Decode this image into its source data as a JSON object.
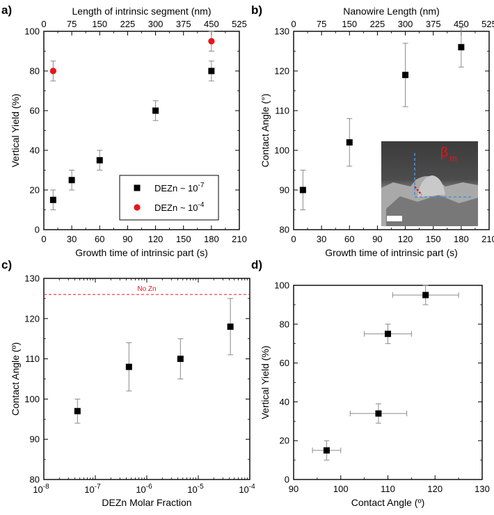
{
  "panel_labels": [
    "a)",
    "b)",
    "c)",
    "d)"
  ],
  "chart_data": [
    {
      "panel": "a)",
      "type": "scatter",
      "xlabel": "Growth time of intrinsic part (s)",
      "ylabel": "Vertical Yield (%)",
      "xlabel_top": "Length of intrinsic segment (nm)",
      "xlim": [
        0,
        210
      ],
      "ylim": [
        0,
        100
      ],
      "xticks": [
        0,
        30,
        60,
        90,
        120,
        150,
        180,
        210
      ],
      "yticks": [
        0,
        20,
        40,
        60,
        80,
        100
      ],
      "top_ticks": [
        "0",
        "75",
        "150",
        "225",
        "300",
        "375",
        "450",
        "525"
      ],
      "legend_position": "bottom-right",
      "series": [
        {
          "name": "DEZn ~ 10",
          "name_sup": "-7",
          "color": "#000000",
          "marker": "square",
          "points": [
            {
              "x": 10,
              "y": 15,
              "err": 5
            },
            {
              "x": 30,
              "y": 25,
              "err": 5
            },
            {
              "x": 60,
              "y": 35,
              "err": 5
            },
            {
              "x": 120,
              "y": 60,
              "err": 5
            },
            {
              "x": 180,
              "y": 80,
              "err": 5
            }
          ]
        },
        {
          "name": "DEZn ~ 10",
          "name_sup": "-4",
          "color": "#e8141c",
          "marker": "circle",
          "points": [
            {
              "x": 10,
              "y": 80,
              "err": 5
            },
            {
              "x": 180,
              "y": 95,
              "err": 5
            }
          ]
        }
      ]
    },
    {
      "panel": "b)",
      "type": "scatter",
      "xlabel": "Growth time of intrinsic part (s)",
      "ylabel": "Contact Angle (°)",
      "xlabel_top": "Nanowire Length (nm)",
      "xlim": [
        0,
        210
      ],
      "ylim": [
        80,
        130
      ],
      "xticks": [
        0,
        30,
        60,
        90,
        120,
        150,
        180,
        210
      ],
      "yticks": [
        80,
        90,
        100,
        110,
        120,
        130
      ],
      "top_ticks": [
        "0",
        "75",
        "150",
        "225",
        "300",
        "375",
        "450",
        "525"
      ],
      "inset_annotation": "β",
      "inset_annotation_sub": "m",
      "series": [
        {
          "color": "#000000",
          "marker": "square",
          "points": [
            {
              "x": 10,
              "y": 90,
              "err": 5
            },
            {
              "x": 60,
              "y": 102,
              "err": 6
            },
            {
              "x": 120,
              "y": 119,
              "err": 8
            },
            {
              "x": 180,
              "y": 126,
              "err": 5
            }
          ]
        }
      ]
    },
    {
      "panel": "c)",
      "type": "scatter",
      "xlabel": "DEZn Molar Fraction",
      "ylabel": "Contact Angle (º)",
      "xscale": "log",
      "xlim": [
        1e-08,
        0.0001
      ],
      "ylim": [
        80,
        130
      ],
      "xticks_exp": [
        -8,
        -7,
        -6,
        -5,
        -4
      ],
      "yticks": [
        80,
        90,
        100,
        110,
        120,
        130
      ],
      "reference_line": {
        "y": 126,
        "label": "No Zn",
        "color": "#e8141c",
        "style": "dashed"
      },
      "series": [
        {
          "color": "#000000",
          "marker": "square",
          "points": [
            {
              "x": 4.5e-08,
              "y": 97,
              "err": 3
            },
            {
              "x": 4.5e-07,
              "y": 108,
              "err": 6
            },
            {
              "x": 4.5e-06,
              "y": 110,
              "err": 5
            },
            {
              "x": 4.2e-05,
              "y": 118,
              "err": 7
            }
          ]
        }
      ]
    },
    {
      "panel": "d)",
      "type": "scatter",
      "xlabel": "Contact Angle (º)",
      "ylabel": "Vertical Yield (%)",
      "xlim": [
        90,
        130
      ],
      "ylim": [
        0,
        100
      ],
      "xticks": [
        90,
        100,
        110,
        120,
        130
      ],
      "yticks": [
        0,
        20,
        40,
        60,
        80,
        100
      ],
      "series": [
        {
          "color": "#000000",
          "marker": "square",
          "points": [
            {
              "x": 97,
              "y": 15,
              "xerr": 3,
              "yerr": 5
            },
            {
              "x": 108,
              "y": 34,
              "xerr": 6,
              "yerr": 5
            },
            {
              "x": 110,
              "y": 75,
              "xerr": 5,
              "yerr": 5
            },
            {
              "x": 118,
              "y": 95,
              "xerr": 7,
              "yerr": 5
            }
          ]
        }
      ]
    }
  ]
}
